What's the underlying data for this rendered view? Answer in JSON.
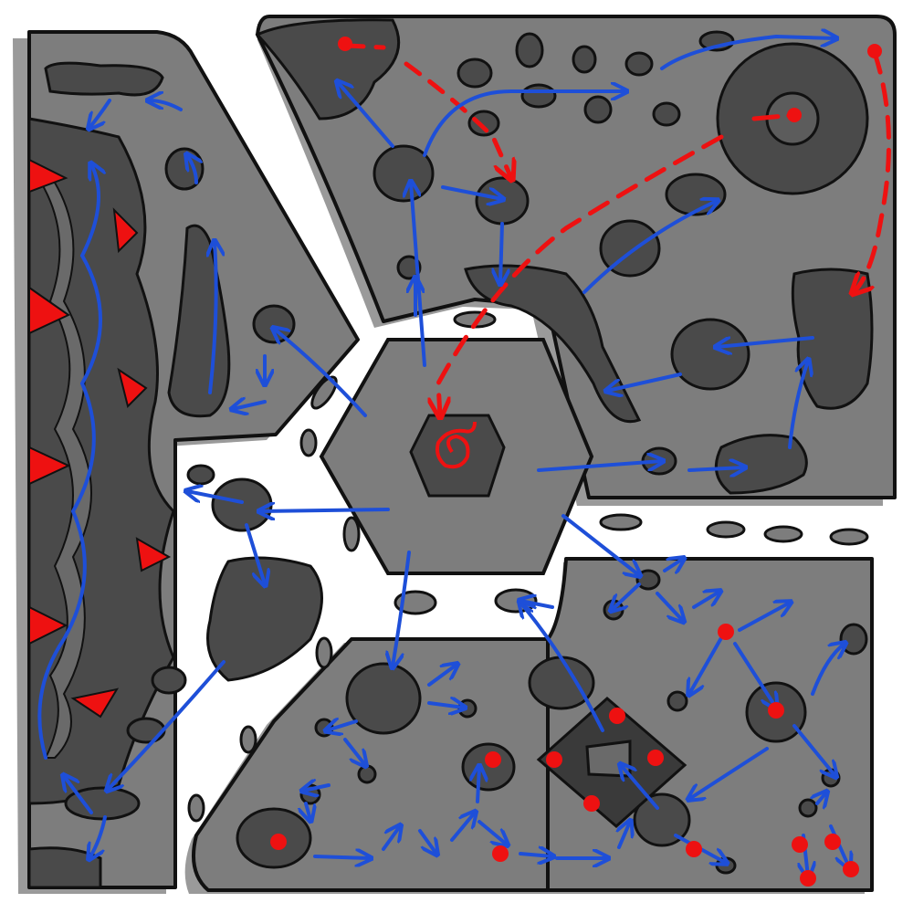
{
  "map": {
    "colors": {
      "background": "#ffffff",
      "zone_fill": "#7d7d7d",
      "zone_shadow": "#9a9a9a",
      "rock_fill": "#4a4a4a",
      "dark_fill": "#333333",
      "outline": "#111111",
      "path_blue": "#1e4fd8",
      "route_red": "#ee1111",
      "hazard_red": "#ee1111"
    },
    "zones": [
      "left-corridor-zone",
      "top-right-zone",
      "bottom-left-zone",
      "bottom-right-zone",
      "center-hub"
    ],
    "icons": [
      "hazard-triangle-icon",
      "target-dot-icon",
      "spiral-marker-icon",
      "path-arrow-icon"
    ]
  }
}
